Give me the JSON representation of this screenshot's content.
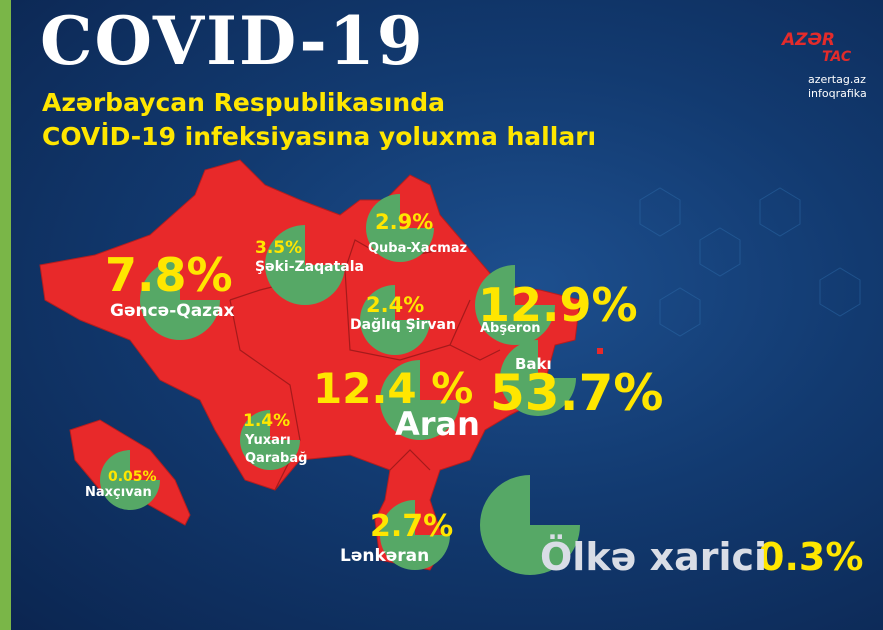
{
  "header": {
    "title": "COVID-19",
    "subtitle": [
      "Azərbaycan Respublikasında",
      "COVİD-19 infeksiyasına yoluxma halları"
    ]
  },
  "logo": {
    "brand": [
      "AZƏR",
      "TAC"
    ],
    "site": "azertag.az",
    "section": "infoqrafika"
  },
  "regions": [
    {
      "name": "Gəncə-Qazax",
      "share": "7.8%"
    },
    {
      "name": "Şəki-Zaqatala",
      "share": "3.5%"
    },
    {
      "name": "Quba-Xacmaz",
      "share": "2.9%"
    },
    {
      "name": "Dağlıq Şirvan",
      "share": "2.4%"
    },
    {
      "name": "Abşeron",
      "share": "12.9%"
    },
    {
      "name": "Bakı",
      "share": "53.7%"
    },
    {
      "name": "Aran",
      "share": "12.4 %"
    },
    {
      "name": "Yuxarı Qarabağ",
      "share": "1.4%"
    },
    {
      "name": "Naxçıvan",
      "share": "0.05%"
    },
    {
      "name": "Lənkəran",
      "share": "2.7%"
    },
    {
      "name": "Ölkə xarici",
      "share": "0.3%"
    }
  ]
}
